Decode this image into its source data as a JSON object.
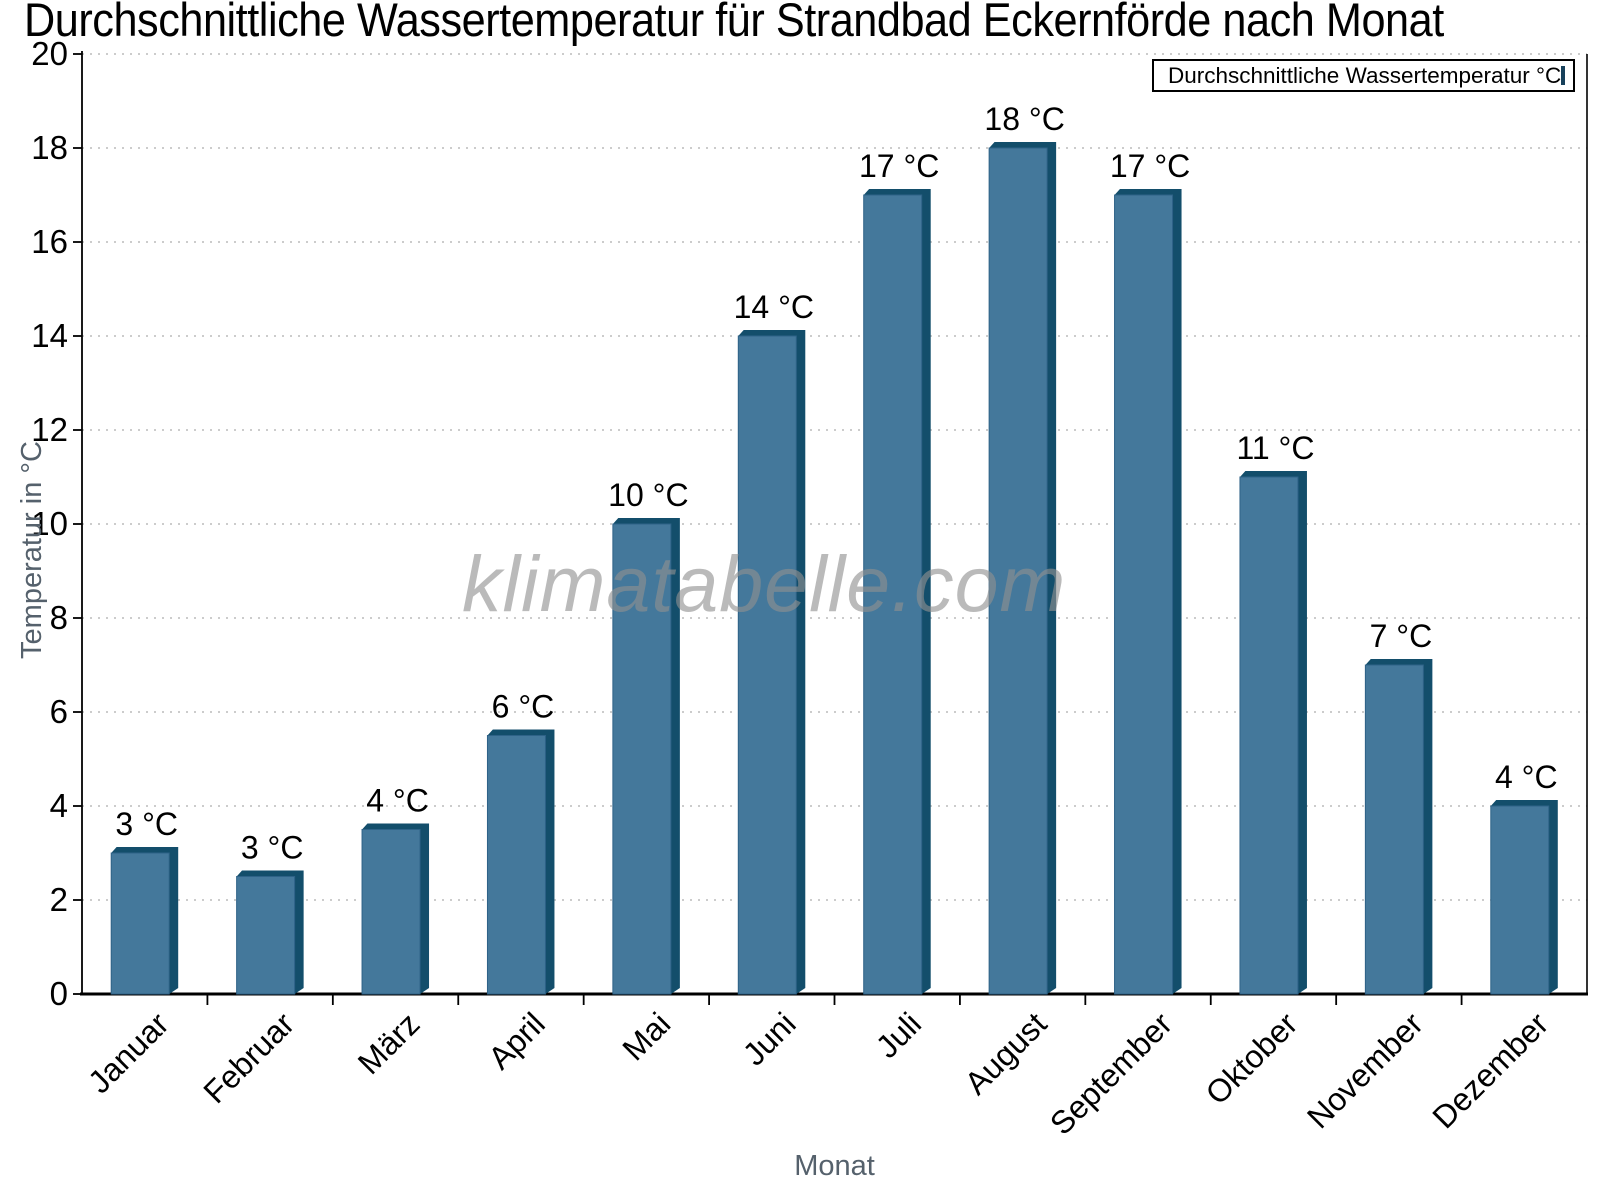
{
  "title": "Durchschnittliche Wassertemperatur für Strandbad Eckernförde nach Monat",
  "watermark": "klimatabelle.com",
  "legend": {
    "label": "Durchschnittliche Wassertemperatur °C",
    "position": "top-right"
  },
  "axes": {
    "y_title": "Temperatur in °C",
    "x_title": "Monat"
  },
  "colors": {
    "bar_face": "#44789B",
    "bar_edge_dark": "#134E6B",
    "bar_outline": "#2E6287",
    "grid_line": "#BBBBBB",
    "axis_line": "#000000",
    "axis_title_text": "#55616C",
    "tick_label_text": "#000000",
    "watermark_text": "#919191"
  },
  "chart_data": {
    "type": "bar",
    "title": "Durchschnittliche Wassertemperatur für Strandbad Eckernförde nach Monat",
    "categories": [
      "Januar",
      "Februar",
      "März",
      "April",
      "Mai",
      "Juni",
      "Juli",
      "August",
      "September",
      "Oktober",
      "November",
      "Dezember"
    ],
    "series": [
      {
        "name": "Durchschnittliche Wassertemperatur °C",
        "values": [
          3,
          2.5,
          3.5,
          5.5,
          10,
          14,
          17,
          18,
          17,
          11,
          7,
          4
        ],
        "bar_labels": [
          "3 °C",
          "3 °C",
          "4 °C",
          "6 °C",
          "10 °C",
          "14 °C",
          "17 °C",
          "18 °C",
          "17 °C",
          "11 °C",
          "7 °C",
          "4 °C"
        ]
      }
    ],
    "xlabel": "Monat",
    "ylabel": "Temperatur in °C",
    "ylim": [
      0,
      20
    ],
    "y_tick_step": 2,
    "y_tick_labels": [
      "0",
      "2",
      "4",
      "6",
      "8",
      "10",
      "12",
      "14",
      "16",
      "18",
      "20"
    ],
    "grid": "horizontal-dotted",
    "legend_position": "top-right",
    "bar_color": "#44789B",
    "watermark": "klimatabelle.com"
  }
}
